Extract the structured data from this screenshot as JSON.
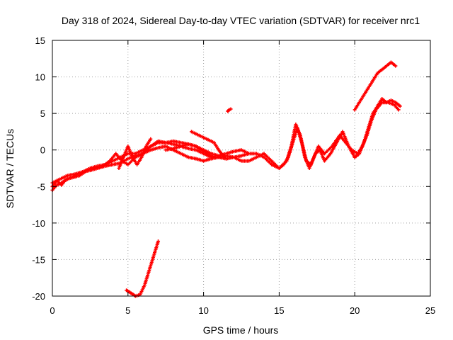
{
  "chart_data": {
    "type": "scatter",
    "title": "Day 318 of 2024, Sidereal Day-to-day VTEC variation (SDTVAR) for receiver nrc1",
    "xlabel": "GPS time / hours",
    "ylabel": "SDTVAR / TECUs",
    "xlim": [
      0,
      25
    ],
    "ylim": [
      -20,
      15
    ],
    "xticks": [
      0,
      5,
      10,
      15,
      20,
      25
    ],
    "yticks": [
      -20,
      -15,
      -10,
      -5,
      0,
      5,
      10,
      15
    ],
    "grid": true,
    "marker": "+",
    "series": [
      {
        "name": "SDTVAR",
        "color": "#ff0000",
        "segments": [
          {
            "x": [
              0.0,
              0.3,
              0.6,
              1.0,
              1.5,
              2.0,
              2.5,
              3.0,
              3.5,
              4.0,
              4.5,
              5.0,
              5.5,
              6.0,
              6.5,
              7.0,
              7.5,
              8.0,
              8.5,
              9.0,
              9.5,
              10.0,
              10.5,
              11.0,
              11.5,
              12.0,
              12.5,
              13.0,
              13.5,
              14.0,
              14.5,
              15.0,
              15.5,
              15.8,
              16.1,
              16.4,
              16.7,
              17.0,
              17.3,
              17.6,
              18.0,
              18.5,
              19.0,
              19.4,
              19.8,
              20.2,
              20.5,
              20.8,
              21.1,
              21.4,
              21.8,
              22.2,
              22.6,
              22.9
            ],
            "y": [
              -5.5,
              -4.8,
              -4.5,
              -4.0,
              -3.5,
              -3.0,
              -2.5,
              -2.2,
              -2.0,
              -1.5,
              -1.0,
              -0.5,
              -0.5,
              0.0,
              0.5,
              1.0,
              1.0,
              0.8,
              0.5,
              0.2,
              0.0,
              -0.5,
              -1.0,
              -1.0,
              -1.2,
              -1.0,
              -0.8,
              -0.5,
              -0.5,
              -1.0,
              -2.0,
              -2.5,
              -1.5,
              0.5,
              3.5,
              2.0,
              -1.0,
              -2.5,
              -1.0,
              0.5,
              -0.5,
              0.5,
              2.0,
              1.0,
              0.0,
              -0.5,
              0.5,
              2.0,
              4.0,
              5.5,
              6.5,
              6.5,
              6.2,
              5.5
            ]
          },
          {
            "x": [
              0.0,
              0.5,
              1.0,
              1.5,
              2.0,
              2.5,
              3.0,
              3.5,
              4.0,
              4.5,
              5.0,
              5.5,
              6.0,
              6.5,
              7.0,
              7.5,
              8.0,
              8.5,
              9.0,
              9.5,
              10.0,
              10.5,
              11.0,
              11.5,
              12.0,
              12.5,
              13.0,
              13.5,
              14.0,
              14.5,
              15.0,
              15.3,
              15.6,
              15.9,
              16.2,
              16.5,
              16.8,
              17.1,
              17.4,
              17.7,
              18.0,
              18.4,
              18.8,
              19.2,
              19.6,
              20.0,
              20.3
            ],
            "y": [
              -4.5,
              -4.0,
              -3.5,
              -3.3,
              -3.0,
              -2.8,
              -2.5,
              -2.2,
              -2.0,
              -1.8,
              -1.2,
              -0.8,
              -0.5,
              0.0,
              0.3,
              0.5,
              0.0,
              -0.5,
              -1.0,
              -1.2,
              -1.5,
              -1.2,
              -1.0,
              -0.8,
              -1.0,
              -1.5,
              -1.5,
              -1.0,
              -0.5,
              -1.5,
              -2.5,
              -2.0,
              -1.0,
              1.0,
              3.0,
              1.0,
              -1.5,
              -2.0,
              -0.5,
              0.0,
              -1.5,
              -0.5,
              1.0,
              2.5,
              0.5,
              -1.0,
              -0.5
            ]
          },
          {
            "x": [
              0.0,
              0.3,
              0.6,
              0.9,
              1.3,
              1.8,
              2.3,
              2.8,
              3.3,
              3.8,
              4.2,
              4.6,
              5.0,
              5.5,
              6.0,
              6.5
            ],
            "y": [
              -5.0,
              -4.2,
              -4.8,
              -4.0,
              -3.8,
              -3.5,
              -2.8,
              -2.5,
              -2.3,
              -1.5,
              -0.5,
              -1.5,
              -2.0,
              -1.0,
              -0.5,
              0.5
            ]
          },
          {
            "x": [
              4.4,
              4.7,
              5.0,
              5.3,
              5.6,
              5.9,
              6.2,
              6.5
            ],
            "y": [
              -2.5,
              -1.0,
              0.5,
              -1.0,
              -2.0,
              -1.0,
              0.5,
              1.5
            ]
          },
          {
            "x": [
              6.5,
              7.0,
              7.5,
              8.0,
              8.5,
              9.0,
              9.5,
              10.0,
              10.5,
              11.0,
              11.5,
              12.0,
              12.5,
              13.0
            ],
            "y": [
              0.5,
              1.2,
              1.0,
              1.2,
              1.0,
              0.8,
              0.5,
              0.0,
              -0.5,
              -0.8,
              -0.5,
              -0.2,
              0.0,
              -0.5
            ]
          },
          {
            "x": [
              7.5,
              8.0,
              8.5,
              9.0,
              9.5,
              10.0,
              10.5,
              11.0
            ],
            "y": [
              0.0,
              0.2,
              0.5,
              0.8,
              0.5,
              -0.2,
              -0.8,
              -1.0
            ]
          },
          {
            "x": [
              9.2,
              9.7,
              10.2,
              10.7,
              11.0,
              11.3,
              11.5
            ],
            "y": [
              2.5,
              2.0,
              1.5,
              1.0,
              0.0,
              -0.8,
              -1.2
            ]
          },
          {
            "x": [
              11.6,
              11.7,
              11.8
            ],
            "y": [
              5.3,
              5.5,
              5.6
            ]
          },
          {
            "x": [
              4.9,
              5.2,
              5.5,
              5.8,
              6.1,
              6.4,
              6.7,
              7.0
            ],
            "y": [
              -19.2,
              -19.6,
              -20.0,
              -19.8,
              -18.5,
              -16.5,
              -14.5,
              -12.5
            ]
          },
          {
            "x": [
              20.0,
              20.3,
              20.6,
              20.9,
              21.2,
              21.5,
              21.8,
              22.1,
              22.4,
              22.7
            ],
            "y": [
              5.5,
              6.5,
              7.5,
              8.5,
              9.5,
              10.5,
              11.0,
              11.5,
              12.0,
              11.5
            ]
          },
          {
            "x": [
              20.0,
              20.3,
              20.6,
              20.9,
              21.2,
              21.5,
              21.8,
              22.1,
              22.4,
              22.7,
              23.0
            ],
            "y": [
              -1.0,
              -0.5,
              1.0,
              3.0,
              5.0,
              6.0,
              7.0,
              6.5,
              6.8,
              6.5,
              6.0
            ]
          }
        ]
      }
    ]
  }
}
